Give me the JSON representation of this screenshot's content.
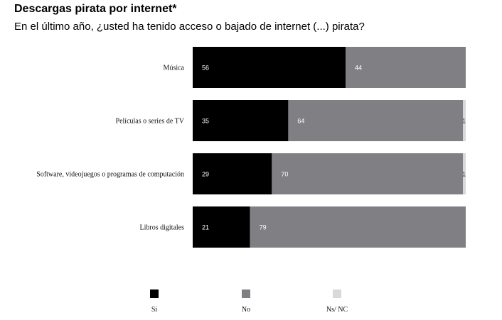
{
  "title": "Descargas pirata por internet*",
  "subtitle": "En el último año, ¿usted ha tenido acceso o bajado de internet (...) pirata?",
  "chart_data": {
    "type": "bar",
    "orientation": "horizontal",
    "stacked": true,
    "categories": [
      "Música",
      "Películas o series de TV",
      "Software, videojuegos o programas de computación",
      "Libros digitales"
    ],
    "series": [
      {
        "name": "Sí",
        "color": "#000000",
        "values": [
          56,
          35,
          29,
          21
        ]
      },
      {
        "name": "No",
        "color": "#808084",
        "values": [
          44,
          64,
          70,
          79
        ]
      },
      {
        "name": "Ns/ NC",
        "color": "#d9d9d9",
        "values": [
          0,
          1,
          1,
          0
        ]
      }
    ],
    "data_labels": [
      [
        "56",
        "44",
        ""
      ],
      [
        "35",
        "64",
        "1"
      ],
      [
        "29",
        "70",
        "1"
      ],
      [
        "21",
        "79",
        ""
      ]
    ],
    "xlim": [
      0,
      100
    ],
    "grid": false,
    "legend_position": "bottom"
  }
}
